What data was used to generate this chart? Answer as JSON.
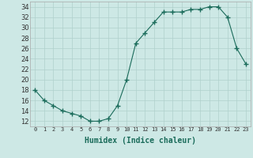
{
  "x": [
    0,
    1,
    2,
    3,
    4,
    5,
    6,
    7,
    8,
    9,
    10,
    11,
    12,
    13,
    14,
    15,
    16,
    17,
    18,
    19,
    20,
    21,
    22,
    23
  ],
  "y": [
    18,
    16,
    15,
    14,
    13.5,
    13,
    12,
    12,
    12.5,
    15,
    20,
    27,
    29,
    31,
    33,
    33,
    33,
    33.5,
    33.5,
    34,
    34,
    32,
    26,
    23
  ],
  "line_color": "#1a6b5a",
  "marker": "+",
  "marker_size": 4,
  "bg_color": "#cde8e5",
  "grid_color": "#b0d0cc",
  "xlabel": "Humidex (Indice chaleur)",
  "xlim": [
    -0.5,
    23.5
  ],
  "ylim": [
    11,
    35
  ],
  "yticks": [
    12,
    14,
    16,
    18,
    20,
    22,
    24,
    26,
    28,
    30,
    32,
    34
  ],
  "xtick_labels": [
    "0",
    "1",
    "2",
    "3",
    "4",
    "5",
    "6",
    "7",
    "8",
    "9",
    "10",
    "11",
    "12",
    "13",
    "14",
    "15",
    "16",
    "17",
    "18",
    "19",
    "20",
    "21",
    "22",
    "23"
  ]
}
